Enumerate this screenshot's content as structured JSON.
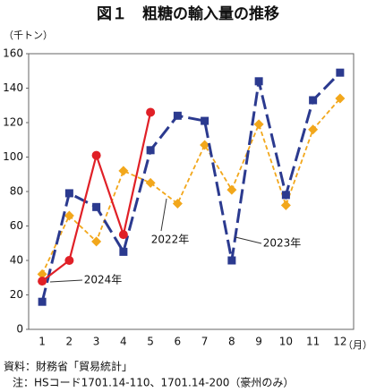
{
  "chart_data": {
    "type": "line",
    "title": "図１　粗糖の輸入量の推移",
    "y_label": "（千トン）",
    "x_label": "（月）",
    "categories": [
      "1",
      "2",
      "3",
      "4",
      "5",
      "6",
      "7",
      "8",
      "9",
      "10",
      "11",
      "12"
    ],
    "series": [
      {
        "name": "2022年",
        "color": "#f2a71b",
        "values": [
          32,
          66,
          51,
          92,
          85,
          73,
          107,
          81,
          119,
          72,
          116,
          134
        ]
      },
      {
        "name": "2023年",
        "color": "#2b3a8f",
        "values": [
          16,
          79,
          71,
          45,
          104,
          124,
          121,
          40,
          144,
          78,
          133,
          149
        ]
      },
      {
        "name": "2024年",
        "color": "#e02027",
        "values": [
          28,
          40,
          101,
          55,
          126,
          null,
          null,
          null,
          null,
          null,
          null,
          null
        ]
      }
    ],
    "ylim": [
      0,
      160
    ],
    "yticks": [
      0,
      20,
      40,
      60,
      80,
      100,
      120,
      140,
      160
    ],
    "grid": false,
    "notes": [
      "資料：財務省「貿易統計」",
      "注：HSコード1701.14-110、1701.14-200（豪州のみ）"
    ]
  }
}
